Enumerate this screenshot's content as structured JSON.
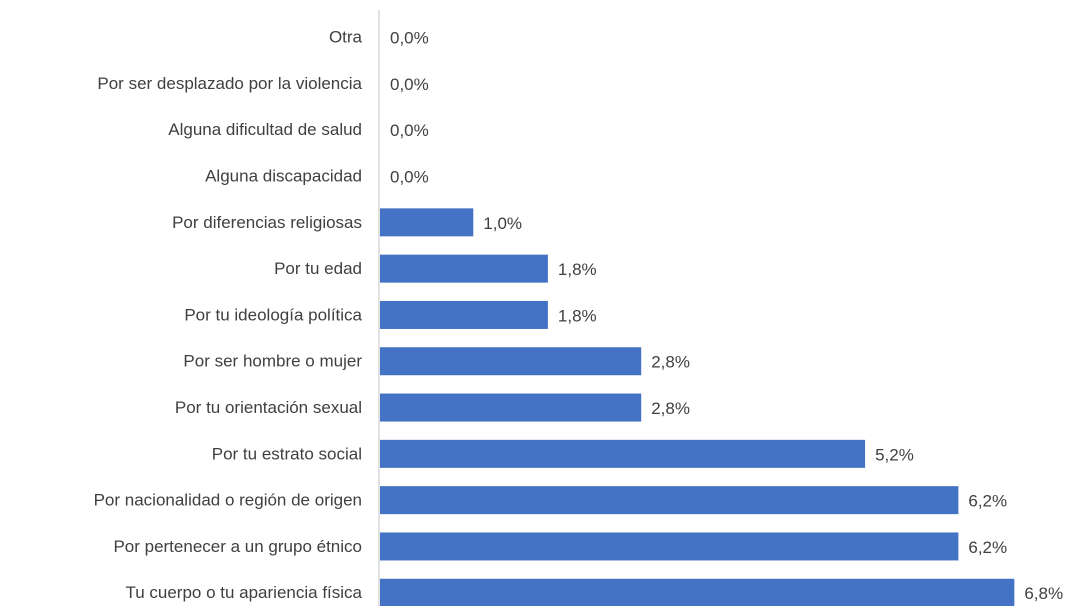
{
  "chart_data": {
    "type": "barh",
    "categories": [
      "Otra",
      "Por ser desplazado por la violencia",
      "Alguna dificultad de salud",
      "Alguna discapacidad",
      "Por diferencias religiosas",
      "Por tu edad",
      "Por tu ideología política",
      "Por ser hombre o mujer",
      "Por tu orientación sexual",
      "Por tu estrato social",
      "Por nacionalidad o región de origen",
      "Por pertenecer a un grupo étnico",
      "Tu cuerpo o tu apariencia física"
    ],
    "values": [
      0,
      0,
      0,
      0,
      1.0,
      1.8,
      1.8,
      2.8,
      2.8,
      5.2,
      6.2,
      6.2,
      6.8
    ],
    "value_labels": [
      "0,0%",
      "0,0%",
      "0,0%",
      "0,0%",
      "1,0%",
      "1,8%",
      "1,8%",
      "2,8%",
      "2,8%",
      "5,2%",
      "6,2%",
      "6,2%",
      "6,8%"
    ],
    "color": "#4472c4",
    "xlim": [
      0,
      7
    ]
  }
}
